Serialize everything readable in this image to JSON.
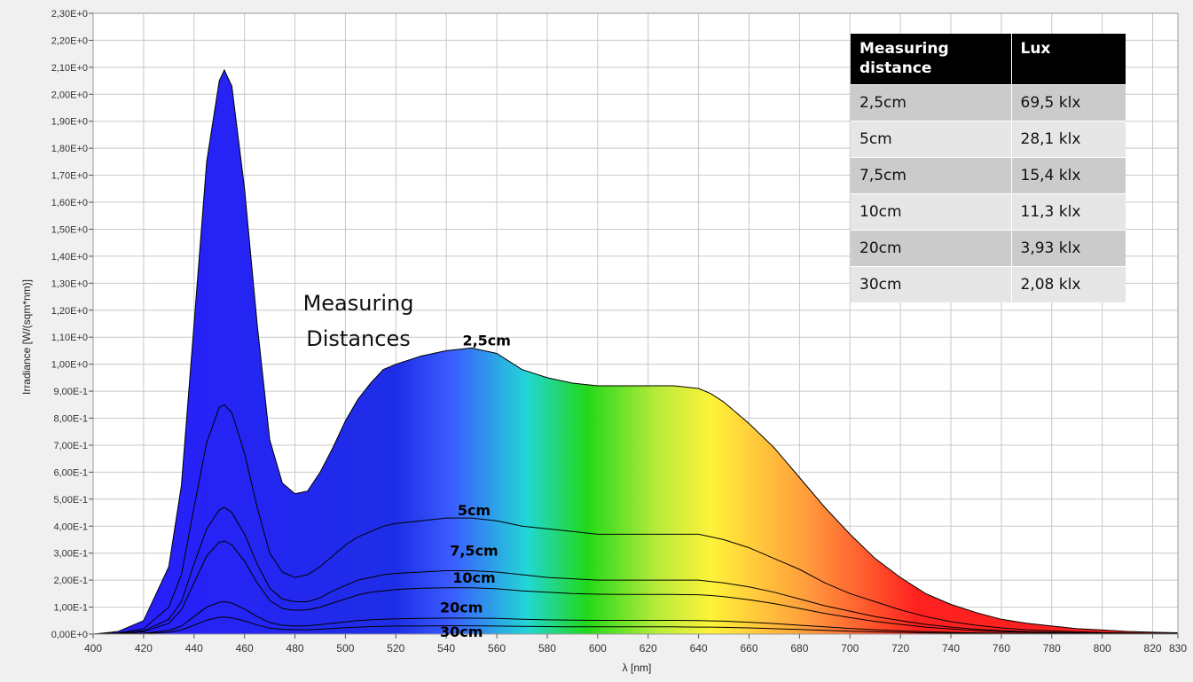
{
  "chart_data": {
    "type": "area",
    "title": "",
    "xlabel": "λ [nm]",
    "ylabel": "Irradiance [W/(sqm*nm)]",
    "xlim": [
      400,
      830
    ],
    "ylim": [
      0,
      2.3
    ],
    "grid": true,
    "x_ticks": [
      400,
      420,
      440,
      460,
      480,
      500,
      520,
      540,
      560,
      580,
      600,
      620,
      640,
      660,
      680,
      700,
      720,
      740,
      760,
      780,
      800,
      820,
      830
    ],
    "x_tick_labels": [
      "400",
      "420",
      "440",
      "460",
      "480",
      "500",
      "520",
      "540",
      "560",
      "580",
      "600",
      "620",
      "640",
      "660",
      "680",
      "700",
      "720",
      "740",
      "760",
      "780",
      "800",
      "820",
      "830"
    ],
    "y_ticks": [
      0,
      0.1,
      0.2,
      0.3,
      0.4,
      0.5,
      0.6,
      0.7,
      0.8,
      0.9,
      1.0,
      1.1,
      1.2,
      1.3,
      1.4,
      1.5,
      1.6,
      1.7,
      1.8,
      1.9,
      2.0,
      2.1,
      2.2,
      2.3
    ],
    "y_tick_labels": [
      "0,00E+0",
      "1,00E-1",
      "2,00E-1",
      "3,00E-1",
      "4,00E-1",
      "5,00E-1",
      "6,00E-1",
      "7,00E-1",
      "8,00E-1",
      "9,00E-1",
      "1,00E+0",
      "1,10E+0",
      "1,20E+0",
      "1,30E+0",
      "1,40E+0",
      "1,50E+0",
      "1,60E+0",
      "1,70E+0",
      "1,80E+0",
      "1,90E+0",
      "2,00E+0",
      "2,10E+0",
      "2,20E+0",
      "2,30E+0"
    ],
    "x": [
      400,
      410,
      420,
      430,
      435,
      440,
      445,
      450,
      452,
      455,
      460,
      465,
      470,
      475,
      480,
      485,
      490,
      495,
      500,
      505,
      510,
      515,
      520,
      530,
      540,
      550,
      560,
      570,
      580,
      590,
      600,
      610,
      620,
      630,
      640,
      645,
      650,
      660,
      670,
      680,
      690,
      700,
      710,
      720,
      730,
      740,
      750,
      760,
      770,
      780,
      790,
      800,
      810,
      820,
      830
    ],
    "series": [
      {
        "name": "2,5cm",
        "label_x": 556,
        "label_y": 1.07,
        "values": [
          0.0,
          0.01,
          0.05,
          0.25,
          0.55,
          1.15,
          1.75,
          2.05,
          2.09,
          2.03,
          1.65,
          1.15,
          0.72,
          0.56,
          0.52,
          0.53,
          0.6,
          0.69,
          0.79,
          0.87,
          0.93,
          0.98,
          1.0,
          1.03,
          1.05,
          1.06,
          1.04,
          0.98,
          0.95,
          0.93,
          0.92,
          0.92,
          0.92,
          0.92,
          0.91,
          0.89,
          0.86,
          0.78,
          0.69,
          0.58,
          0.47,
          0.37,
          0.28,
          0.21,
          0.15,
          0.11,
          0.08,
          0.055,
          0.04,
          0.03,
          0.02,
          0.015,
          0.01,
          0.007,
          0.005
        ]
      },
      {
        "name": "5cm",
        "label_x": 551,
        "label_y": 0.44,
        "values": [
          0.0,
          0.004,
          0.02,
          0.1,
          0.22,
          0.47,
          0.71,
          0.84,
          0.85,
          0.82,
          0.67,
          0.47,
          0.3,
          0.23,
          0.21,
          0.22,
          0.25,
          0.29,
          0.33,
          0.36,
          0.38,
          0.4,
          0.41,
          0.42,
          0.43,
          0.43,
          0.42,
          0.4,
          0.39,
          0.38,
          0.37,
          0.37,
          0.37,
          0.37,
          0.37,
          0.36,
          0.35,
          0.32,
          0.28,
          0.24,
          0.19,
          0.15,
          0.12,
          0.09,
          0.065,
          0.046,
          0.033,
          0.023,
          0.016,
          0.012,
          0.009,
          0.006,
          0.004,
          0.003,
          0.002
        ]
      },
      {
        "name": "7,5cm",
        "label_x": 551,
        "label_y": 0.29,
        "values": [
          0.0,
          0.002,
          0.012,
          0.055,
          0.12,
          0.26,
          0.39,
          0.46,
          0.47,
          0.45,
          0.37,
          0.26,
          0.17,
          0.13,
          0.12,
          0.12,
          0.135,
          0.16,
          0.18,
          0.2,
          0.21,
          0.22,
          0.225,
          0.23,
          0.235,
          0.235,
          0.23,
          0.22,
          0.21,
          0.205,
          0.2,
          0.2,
          0.2,
          0.2,
          0.2,
          0.195,
          0.19,
          0.175,
          0.155,
          0.13,
          0.105,
          0.085,
          0.065,
          0.05,
          0.036,
          0.026,
          0.018,
          0.013,
          0.009,
          0.007,
          0.005,
          0.003,
          0.002,
          0.0015,
          0.001
        ]
      },
      {
        "name": "10cm",
        "label_x": 551,
        "label_y": 0.19,
        "values": [
          0.0,
          0.0015,
          0.009,
          0.04,
          0.09,
          0.19,
          0.29,
          0.34,
          0.345,
          0.33,
          0.27,
          0.19,
          0.125,
          0.095,
          0.088,
          0.09,
          0.1,
          0.115,
          0.13,
          0.145,
          0.155,
          0.16,
          0.165,
          0.17,
          0.172,
          0.172,
          0.168,
          0.16,
          0.155,
          0.15,
          0.148,
          0.147,
          0.147,
          0.147,
          0.146,
          0.143,
          0.139,
          0.127,
          0.113,
          0.095,
          0.077,
          0.061,
          0.047,
          0.036,
          0.026,
          0.019,
          0.013,
          0.009,
          0.007,
          0.005,
          0.004,
          0.003,
          0.002,
          0.001,
          0.001
        ]
      },
      {
        "name": "20cm",
        "label_x": 546,
        "label_y": 0.08,
        "values": [
          0.0,
          0.0005,
          0.003,
          0.014,
          0.03,
          0.065,
          0.1,
          0.118,
          0.12,
          0.115,
          0.093,
          0.065,
          0.043,
          0.033,
          0.03,
          0.031,
          0.035,
          0.04,
          0.045,
          0.05,
          0.053,
          0.055,
          0.057,
          0.058,
          0.059,
          0.059,
          0.058,
          0.055,
          0.053,
          0.052,
          0.051,
          0.051,
          0.051,
          0.051,
          0.05,
          0.049,
          0.048,
          0.044,
          0.039,
          0.033,
          0.027,
          0.021,
          0.016,
          0.012,
          0.009,
          0.0065,
          0.0046,
          0.0032,
          0.0023,
          0.0017,
          0.0013,
          0.0009,
          0.0006,
          0.0004,
          0.0003
        ]
      },
      {
        "name": "30cm",
        "label_x": 546,
        "label_y": -0.01,
        "values": [
          0.0,
          0.0003,
          0.0015,
          0.007,
          0.015,
          0.033,
          0.052,
          0.062,
          0.063,
          0.06,
          0.049,
          0.034,
          0.022,
          0.017,
          0.016,
          0.016,
          0.018,
          0.021,
          0.024,
          0.026,
          0.028,
          0.029,
          0.03,
          0.03,
          0.031,
          0.031,
          0.03,
          0.029,
          0.028,
          0.027,
          0.027,
          0.027,
          0.027,
          0.027,
          0.026,
          0.026,
          0.025,
          0.023,
          0.02,
          0.017,
          0.014,
          0.011,
          0.0085,
          0.0065,
          0.0047,
          0.0034,
          0.0024,
          0.0017,
          0.0012,
          0.0009,
          0.0007,
          0.0005,
          0.0003,
          0.0002,
          0.0001
        ]
      }
    ],
    "annotation": {
      "lines": [
        "Measuring",
        "Distances"
      ]
    }
  },
  "lux_table": {
    "headers": {
      "distance": "Measuring distance",
      "lux": "Lux"
    },
    "rows": [
      {
        "distance": "2,5cm",
        "lux": "69,5 klx"
      },
      {
        "distance": "5cm",
        "lux": "28,1 klx"
      },
      {
        "distance": "7,5cm",
        "lux": "15,4 klx"
      },
      {
        "distance": "10cm",
        "lux": "11,3 klx"
      },
      {
        "distance": "20cm",
        "lux": "3,93 klx"
      },
      {
        "distance": "30cm",
        "lux": "2,08 klx"
      }
    ]
  },
  "colors": {
    "plot_background": "#ffffff",
    "grid": "#c8c8c8",
    "frame": "#f0f0f0",
    "curve": "#000000",
    "spectrum_violet": "#2a1cff",
    "spectrum_blue": "#1e2ee6",
    "spectrum_cyan": "#22d6d6",
    "spectrum_green": "#22d81a",
    "spectrum_yellow": "#fff23a",
    "spectrum_orange": "#ff9a3c",
    "spectrum_red": "#ff2020",
    "table_header": "#000000",
    "table_row_dark": "#cbcbcb",
    "table_row_light": "#e6e6e6"
  }
}
